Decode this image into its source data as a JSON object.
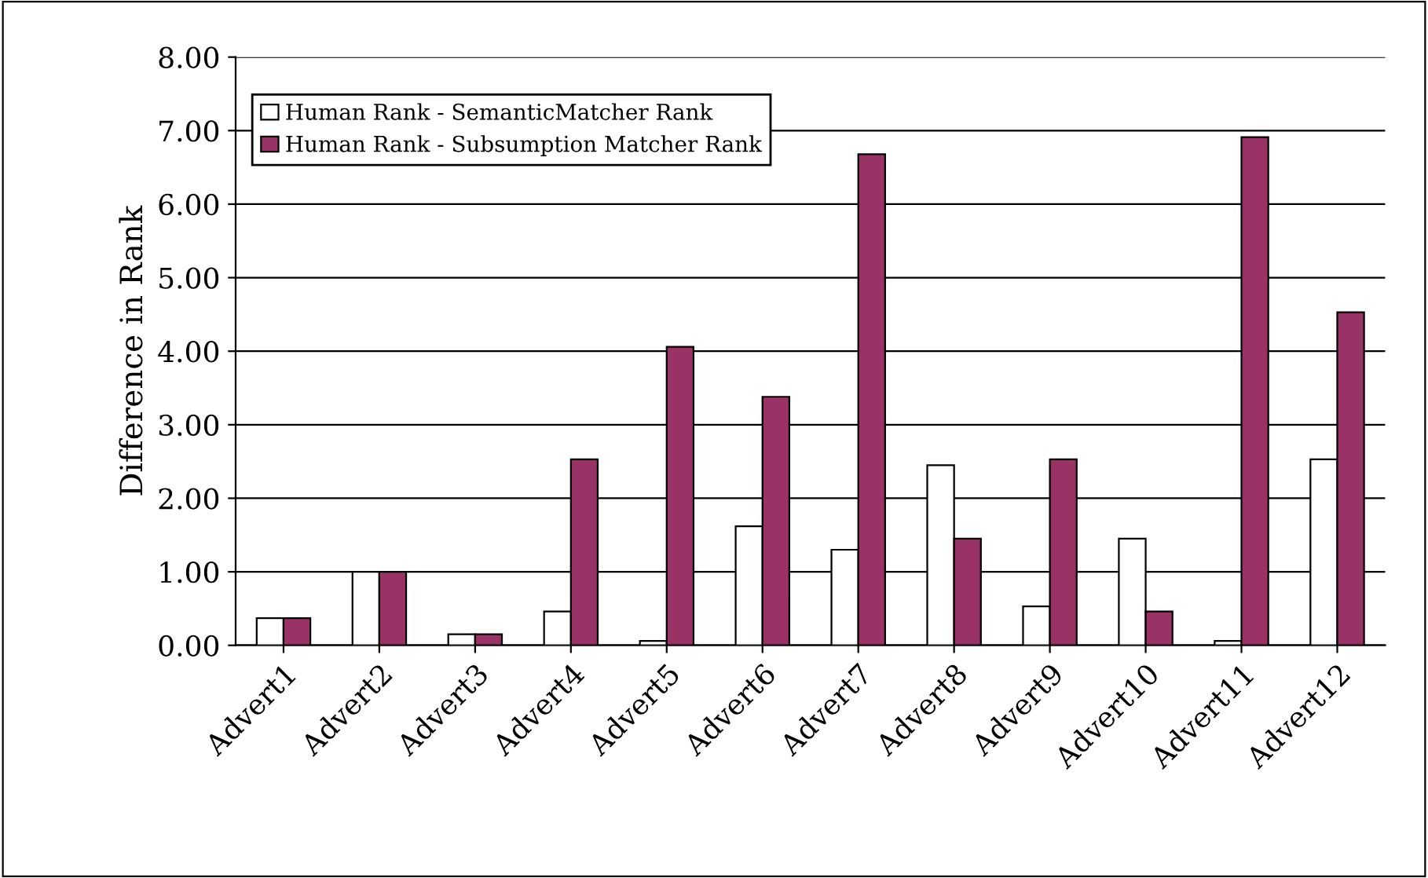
{
  "chart_data": {
    "type": "bar",
    "ylabel": "Difference in Rank",
    "categories": [
      "Advert1",
      "Advert2",
      "Advert3",
      "Advert4",
      "Advert5",
      "Advert6",
      "Advert7",
      "Advert8",
      "Advert9",
      "Advert10",
      "Advert11",
      "Advert12"
    ],
    "series": [
      {
        "name": "Human Rank - SemanticMatcher Rank",
        "color": "#ffffff",
        "values": [
          0.37,
          1.0,
          0.15,
          0.46,
          0.06,
          1.62,
          1.3,
          2.45,
          0.53,
          1.45,
          0.06,
          2.53
        ]
      },
      {
        "name": "Human Rank - Subsumption Matcher Rank",
        "color": "#993366",
        "values": [
          0.37,
          1.0,
          0.15,
          2.53,
          4.06,
          3.38,
          6.68,
          1.45,
          2.53,
          0.46,
          6.91,
          4.53
        ]
      }
    ],
    "ylim": [
      0,
      8
    ],
    "yticks": [
      {
        "value": 0,
        "label": "0.00"
      },
      {
        "value": 1,
        "label": "1.00"
      },
      {
        "value": 2,
        "label": "2.00"
      },
      {
        "value": 3,
        "label": "3.00"
      },
      {
        "value": 4,
        "label": "4.00"
      },
      {
        "value": 5,
        "label": "5.00"
      },
      {
        "value": 6,
        "label": "6.00"
      },
      {
        "value": 7,
        "label": "7.00"
      },
      {
        "value": 8,
        "label": "8.00"
      }
    ],
    "grid": "y",
    "legend": "top left"
  }
}
